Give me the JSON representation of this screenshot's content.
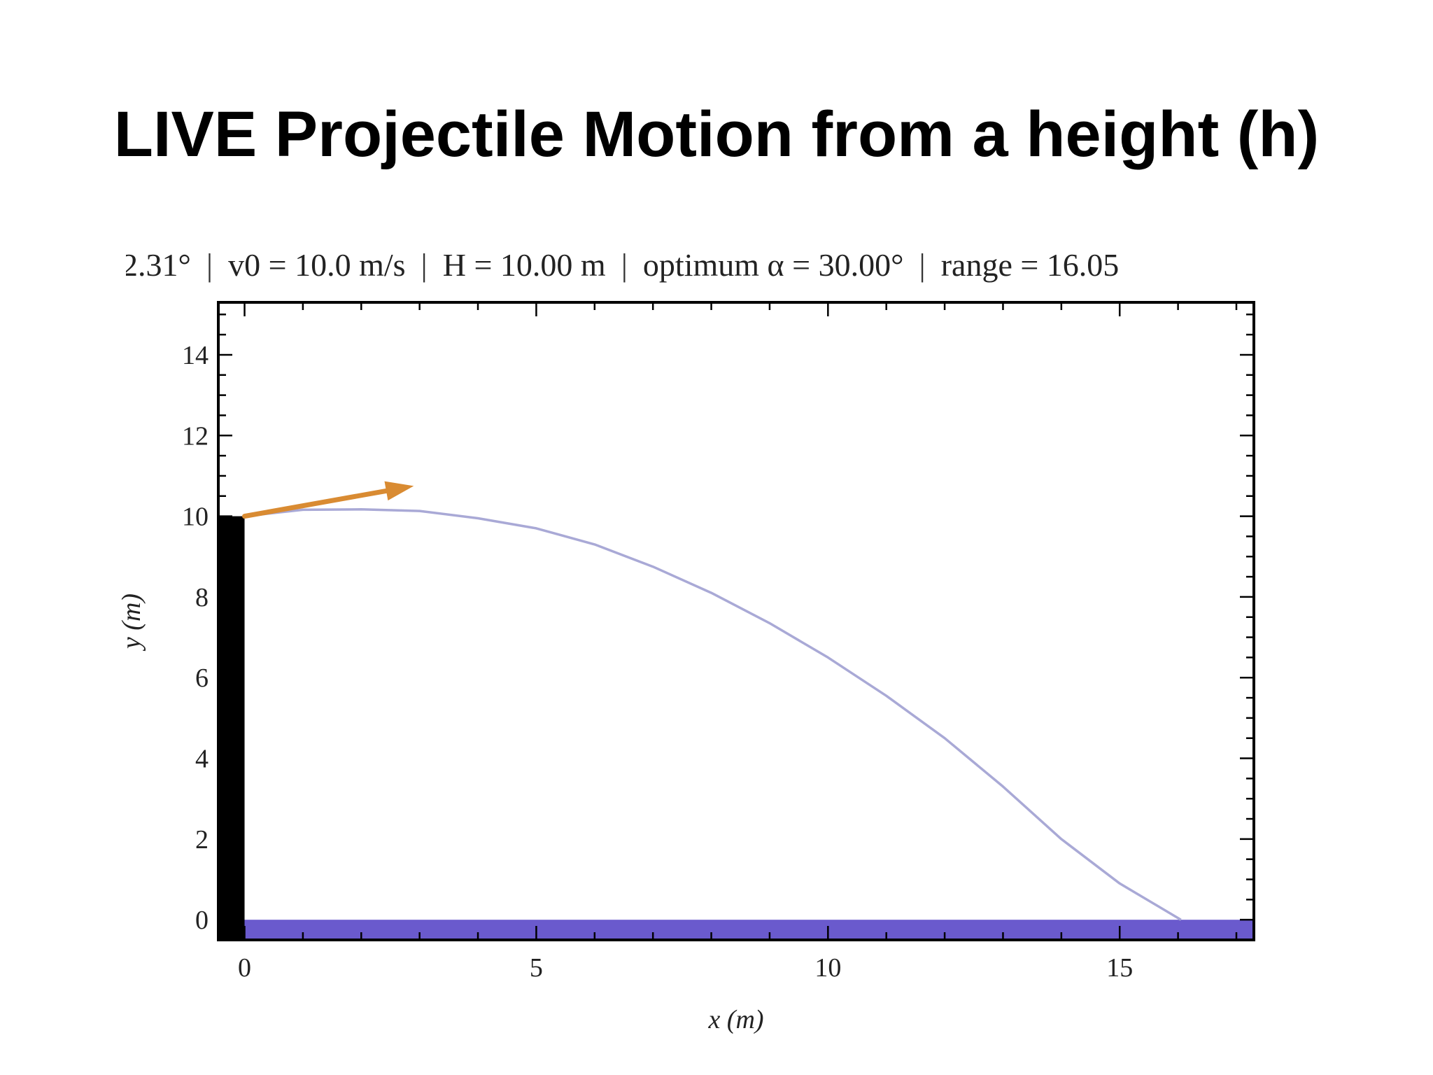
{
  "slide": {
    "title": "LIVE Projectile Motion from a height (h)"
  },
  "params": {
    "angle": "2.31°",
    "v0": "v0 = 10.0 m/s",
    "height": "H = 10.00 m",
    "optimum": "optimum α = 30.00°",
    "range": "range = 16.05"
  },
  "chart_data": {
    "type": "line",
    "xlabel": "x (m)",
    "ylabel": "y (m)",
    "xlim": [
      -0.45,
      17.3
    ],
    "ylim": [
      -0.5,
      15.3
    ],
    "xticks": [
      0,
      5,
      10,
      15
    ],
    "yticks": [
      0,
      2,
      4,
      6,
      8,
      10,
      12,
      14
    ],
    "grid": false,
    "series": [
      {
        "type": "trajectory",
        "color": "#a9a9d6",
        "x": [
          0,
          1,
          2,
          3,
          4,
          5,
          6,
          7,
          8,
          9,
          10,
          11,
          12,
          13,
          14,
          15,
          16.05
        ],
        "y": [
          10.0,
          10.16,
          10.17,
          10.13,
          9.95,
          9.7,
          9.3,
          8.75,
          8.1,
          7.35,
          6.5,
          5.55,
          4.5,
          3.3,
          2.0,
          0.9,
          0.0
        ]
      }
    ],
    "launch_arrow": {
      "from": [
        0,
        10.0
      ],
      "to": [
        2.9,
        10.75
      ],
      "color": "#d98b32"
    },
    "tower": {
      "height": 10.0,
      "x_from": -0.45,
      "x_to": 0,
      "color": "#000000"
    },
    "ground": {
      "y_from": -0.5,
      "y_to": 0,
      "color": "#6a5acd"
    }
  }
}
